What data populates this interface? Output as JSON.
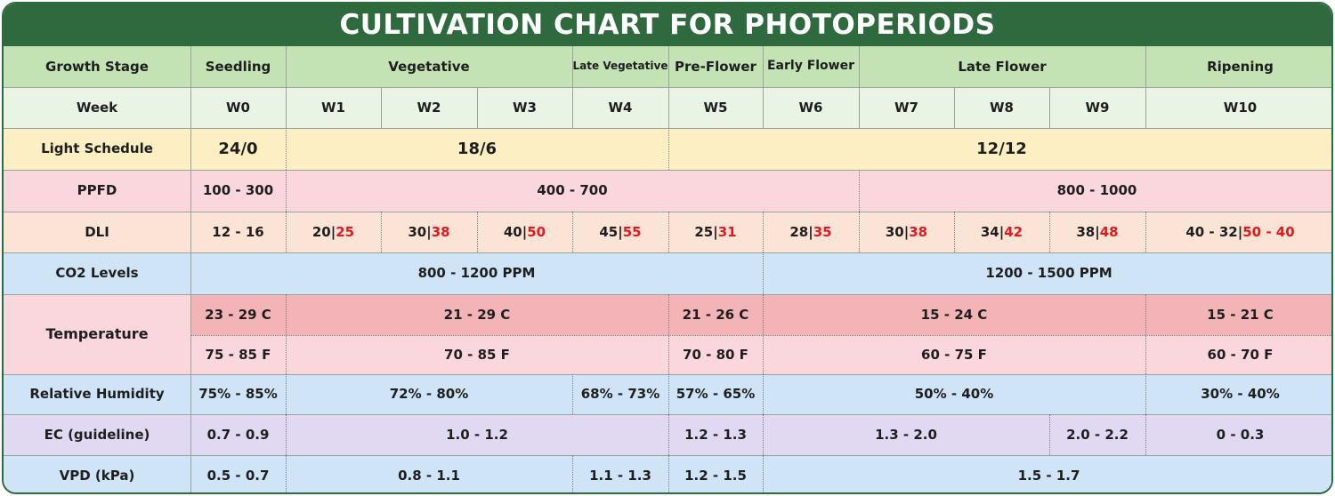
{
  "title": "CULTIVATION CHART FOR PHOTOPERIODS",
  "colors": {
    "title_bg": "#2e6a3e",
    "header_row": "#c3e3b5",
    "week_row": "#eaf4e4",
    "light_row": "#fcefc4",
    "ppfd_row": "#f9d7dc",
    "dli_row": "#fbe4d6",
    "co2_row": "#cfe4f6",
    "temp_c_row": "#f2b4b7",
    "temp_f_row": "#f9d7dc",
    "humidity_row": "#cfe4f6",
    "ec_row": "#e1d9f2",
    "vpd_row": "#cfe4f6",
    "highlight_red": "#e3171d"
  },
  "chart_data": {
    "type": "table",
    "rows": {
      "growth_stage": {
        "label": "Growth Stage",
        "stages": [
          "Seedling",
          "Vegetative",
          "Late Vegetative",
          "Pre-Flower",
          "Early Flower",
          "Late Flower",
          "Ripening"
        ]
      },
      "week": {
        "label": "Week",
        "weeks": [
          "W0",
          "W1",
          "W2",
          "W3",
          "W4",
          "W5",
          "W6",
          "W7",
          "W8",
          "W9",
          "W10"
        ]
      },
      "light_schedule": {
        "label": "Light Schedule",
        "values": [
          "24/0",
          "18/6",
          "12/12"
        ]
      },
      "ppfd": {
        "label": "PPFD",
        "values": [
          "100 - 300",
          "400 - 700",
          "800 - 1000"
        ]
      },
      "dli": {
        "label": "DLI",
        "seedling": "12 - 16",
        "values": [
          {
            "a": "20",
            "b": "25"
          },
          {
            "a": "30",
            "b": "38"
          },
          {
            "a": "40",
            "b": "50"
          },
          {
            "a": "45",
            "b": "55"
          },
          {
            "a": "25",
            "b": "31"
          },
          {
            "a": "28",
            "b": "35"
          },
          {
            "a": "30",
            "b": "38"
          },
          {
            "a": "34",
            "b": "42"
          },
          {
            "a": "38",
            "b": "48"
          },
          {
            "a": "40 - 32",
            "b": "50 - 40"
          }
        ]
      },
      "co2": {
        "label": "CO2 Levels",
        "values": [
          "800 - 1200 PPM",
          "1200 - 1500 PPM"
        ]
      },
      "temperature": {
        "label": "Temperature",
        "celsius": [
          "23 - 29 C",
          "21 - 29 C",
          "21 - 26 C",
          "15 - 24 C",
          "15 - 21 C"
        ],
        "fahrenheit": [
          "75 - 85 F",
          "70 - 85 F",
          "70 - 80 F",
          "60 - 75 F",
          "60 - 70 F"
        ]
      },
      "humidity": {
        "label": "Relative Humidity",
        "values": [
          "75% - 85%",
          "72% - 80%",
          "68% - 73%",
          "57% - 65%",
          "50% - 40%",
          "30% - 40%"
        ]
      },
      "ec": {
        "label": "EC (guideline)",
        "values": [
          "0.7 - 0.9",
          "1.0 - 1.2",
          "1.2 - 1.3",
          "1.3 - 2.0",
          "2.0 - 2.2",
          "0 - 0.3"
        ]
      },
      "vpd": {
        "label": "VPD (kPa)",
        "values": [
          "0.5 - 0.7",
          "0.8 - 1.1",
          "1.1 - 1.3",
          "1.2 - 1.5",
          "1.5 - 1.7"
        ]
      }
    }
  }
}
